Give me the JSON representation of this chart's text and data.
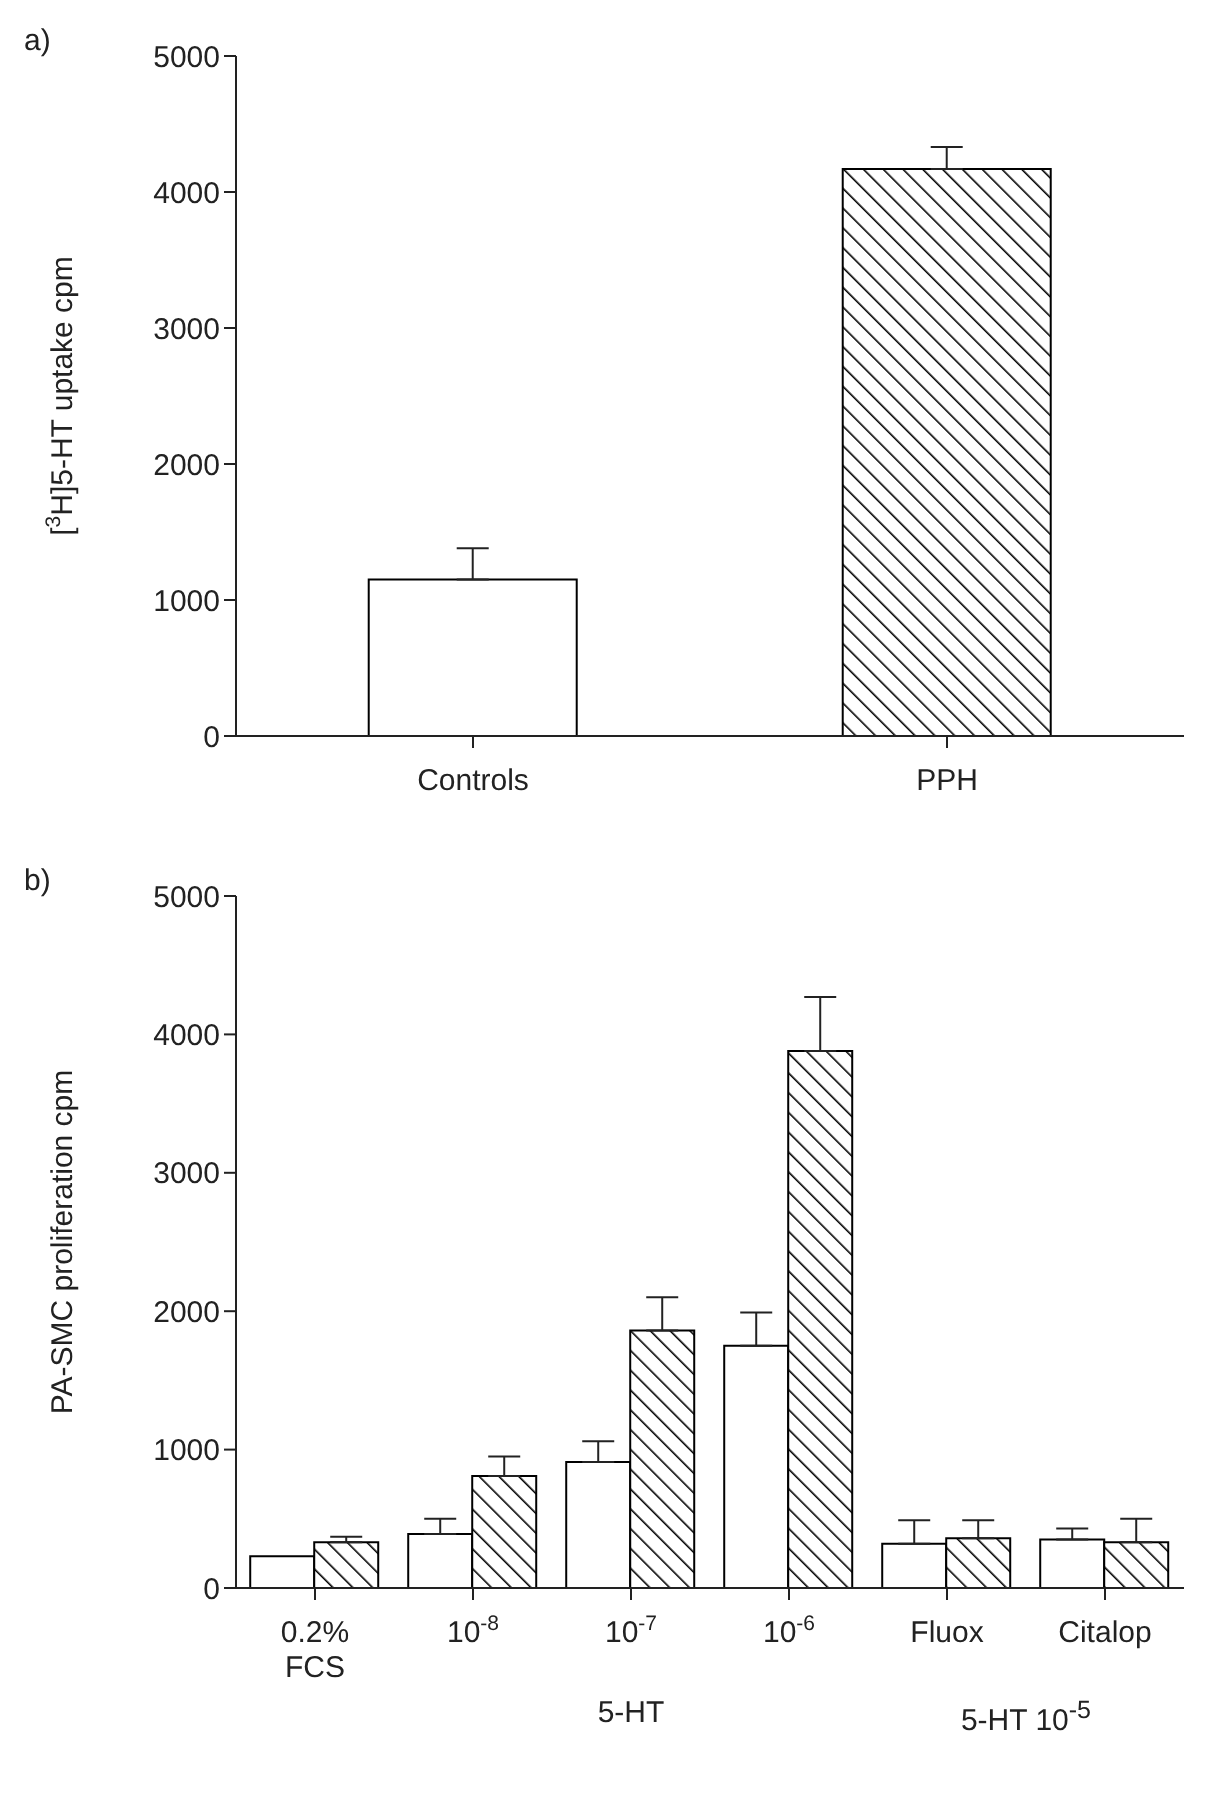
{
  "chart_data": [
    {
      "type": "bar",
      "title": "a)",
      "ylabel": "[$^{3}$H]5-HT uptake  cpm",
      "categories": [
        "Controls",
        "PPH"
      ],
      "values": [
        1150,
        4170
      ],
      "errors": [
        230,
        160
      ],
      "colors": [
        "#ffffff",
        "#000000"
      ],
      "ylim": [
        0,
        5000
      ],
      "yticks": [
        0,
        1000,
        2000,
        3000,
        4000,
        5000
      ],
      "grid": false,
      "legend": false
    },
    {
      "type": "bar",
      "title": "b)",
      "ylabel": "PA-SMC proliferation  cpm",
      "categories": [
        "0.2%\nFCS",
        "10$^{-8}$",
        "10$^{-7}$",
        "10$^{-6}$",
        "Fluox",
        "Citalop"
      ],
      "series": [
        {
          "color": "#ffffff",
          "values": [
            230,
            390,
            910,
            1750,
            320,
            350
          ],
          "errors": [
            null,
            110,
            150,
            240,
            170,
            80
          ]
        },
        {
          "color": "#000000",
          "values": [
            330,
            810,
            1860,
            3880,
            360,
            330
          ],
          "errors": [
            40,
            140,
            240,
            390,
            130,
            170
          ]
        }
      ],
      "annotations": [
        "5-HT",
        "5-HT 10$^{-5}$"
      ],
      "ylim": [
        0,
        5000
      ],
      "yticks": [
        0,
        1000,
        2000,
        3000,
        4000,
        5000
      ],
      "grid": false,
      "legend": false
    }
  ]
}
